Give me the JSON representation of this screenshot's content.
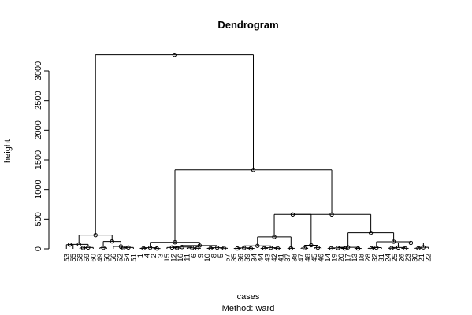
{
  "chart_data": {
    "type": "dendrogram",
    "title": "Dendrogram",
    "subtitle": "Method:  ward",
    "xlabel": "cases",
    "ylabel": "height",
    "ylim": [
      0,
      3300
    ],
    "yticks": [
      0,
      500,
      1000,
      1500,
      2000,
      2500,
      3000
    ],
    "leaves": [
      "53",
      "55",
      "58",
      "59",
      "60",
      "49",
      "50",
      "56",
      "52",
      "54",
      "51",
      "1",
      "4",
      "2",
      "3",
      "15",
      "12",
      "16",
      "11",
      "6",
      "9",
      "10",
      "8",
      "5",
      "57",
      "35",
      "36",
      "39",
      "34",
      "44",
      "43",
      "42",
      "41",
      "37",
      "38",
      "47",
      "48",
      "45",
      "46",
      "14",
      "19",
      "20",
      "17",
      "13",
      "18",
      "28",
      "32",
      "31",
      "24",
      "25",
      "26",
      "23",
      "30",
      "21",
      "22"
    ],
    "merges": [
      {
        "id": "n1",
        "children": [
          "53",
          "55"
        ],
        "height": 70
      },
      {
        "id": "n2",
        "children": [
          "58",
          "59"
        ],
        "height": 14
      },
      {
        "id": "n3",
        "children": [
          "n2",
          "60"
        ],
        "height": 22
      },
      {
        "id": "n4",
        "children": [
          "n1",
          "n3"
        ],
        "height": 75
      },
      {
        "id": "n5",
        "children": [
          "49",
          "50"
        ],
        "height": 18
      },
      {
        "id": "n6",
        "children": [
          "52",
          "54"
        ],
        "height": 12
      },
      {
        "id": "n7",
        "children": [
          "n6",
          "51"
        ],
        "height": 22
      },
      {
        "id": "n8",
        "children": [
          "56",
          "n7"
        ],
        "height": 40
      },
      {
        "id": "n9",
        "children": [
          "n5",
          "n8"
        ],
        "height": 125
      },
      {
        "id": "n10",
        "children": [
          "n4",
          "n9"
        ],
        "height": 230
      },
      {
        "id": "n11",
        "children": [
          "1",
          "4"
        ],
        "height": 8
      },
      {
        "id": "n12",
        "children": [
          "2",
          "3"
        ],
        "height": 5
      },
      {
        "id": "n13",
        "children": [
          "n11",
          "n12"
        ],
        "height": 18
      },
      {
        "id": "n14",
        "children": [
          "12",
          "16"
        ],
        "height": 14
      },
      {
        "id": "n15",
        "children": [
          "15",
          "n14"
        ],
        "height": 22
      },
      {
        "id": "n16",
        "children": [
          "6",
          "9"
        ],
        "height": 8
      },
      {
        "id": "n17",
        "children": [
          "n16",
          "11"
        ],
        "height": 15
      },
      {
        "id": "n18",
        "children": [
          "n15",
          "n17"
        ],
        "height": 30
      },
      {
        "id": "n19",
        "children": [
          "10",
          "8"
        ],
        "height": 8
      },
      {
        "id": "n20",
        "children": [
          "5",
          "57"
        ],
        "height": 10
      },
      {
        "id": "n21",
        "children": [
          "n19",
          "n20"
        ],
        "height": 18
      },
      {
        "id": "n22",
        "children": [
          "n18",
          "n21"
        ],
        "height": 55
      },
      {
        "id": "n23",
        "children": [
          "n13",
          "n22"
        ],
        "height": 110
      },
      {
        "id": "n24",
        "children": [
          "35",
          "36"
        ],
        "height": 6
      },
      {
        "id": "n25",
        "children": [
          "39",
          "34"
        ],
        "height": 6
      },
      {
        "id": "n26",
        "children": [
          "n24",
          "n25"
        ],
        "height": 15
      },
      {
        "id": "n27",
        "children": [
          "44",
          "43"
        ],
        "height": 8
      },
      {
        "id": "n28",
        "children": [
          "42",
          "41"
        ],
        "height": 8
      },
      {
        "id": "n29",
        "children": [
          "n27",
          "n28"
        ],
        "height": 18
      },
      {
        "id": "n30",
        "children": [
          "n26",
          "n29"
        ],
        "height": 50
      },
      {
        "id": "n31",
        "children": [
          "37",
          "38"
        ],
        "height": 8
      },
      {
        "id": "n32",
        "children": [
          "n30",
          "n31"
        ],
        "height": 200
      },
      {
        "id": "n33",
        "children": [
          "47",
          "48"
        ],
        "height": 12
      },
      {
        "id": "n34",
        "children": [
          "45",
          "46"
        ],
        "height": 18
      },
      {
        "id": "n35",
        "children": [
          "n33",
          "n34"
        ],
        "height": 60
      },
      {
        "id": "n36",
        "children": [
          "n32",
          "n35"
        ],
        "height": 580
      },
      {
        "id": "n37",
        "children": [
          "14",
          "19"
        ],
        "height": 8
      },
      {
        "id": "n38",
        "children": [
          "20",
          "17"
        ],
        "height": 6
      },
      {
        "id": "n39",
        "children": [
          "n37",
          "n38"
        ],
        "height": 15
      },
      {
        "id": "n40",
        "children": [
          "13",
          "18"
        ],
        "height": 6
      },
      {
        "id": "n41",
        "children": [
          "n39",
          "n40"
        ],
        "height": 25
      },
      {
        "id": "n42",
        "children": [
          "28",
          "32"
        ],
        "height": 8
      },
      {
        "id": "n43",
        "children": [
          "n42",
          "31"
        ],
        "height": 20
      },
      {
        "id": "n44",
        "children": [
          "24",
          "25"
        ],
        "height": 10
      },
      {
        "id": "n45",
        "children": [
          "26",
          "23"
        ],
        "height": 8
      },
      {
        "id": "n46",
        "children": [
          "n44",
          "n45"
        ],
        "height": 22
      },
      {
        "id": "n47",
        "children": [
          "30",
          "21"
        ],
        "height": 10
      },
      {
        "id": "n48",
        "children": [
          "n47",
          "22"
        ],
        "height": 25
      },
      {
        "id": "n49",
        "children": [
          "n46",
          "n48"
        ],
        "height": 100
      },
      {
        "id": "n50",
        "children": [
          "n43",
          "n49"
        ],
        "height": 120
      },
      {
        "id": "n51",
        "children": [
          "n41",
          "n50"
        ],
        "height": 270
      },
      {
        "id": "n52",
        "children": [
          "n36",
          "n51"
        ],
        "height": 580
      },
      {
        "id": "n53",
        "children": [
          "n23",
          "n52"
        ],
        "height": 1330
      },
      {
        "id": "n54",
        "children": [
          "n10",
          "n53"
        ],
        "height": 3270
      }
    ]
  }
}
